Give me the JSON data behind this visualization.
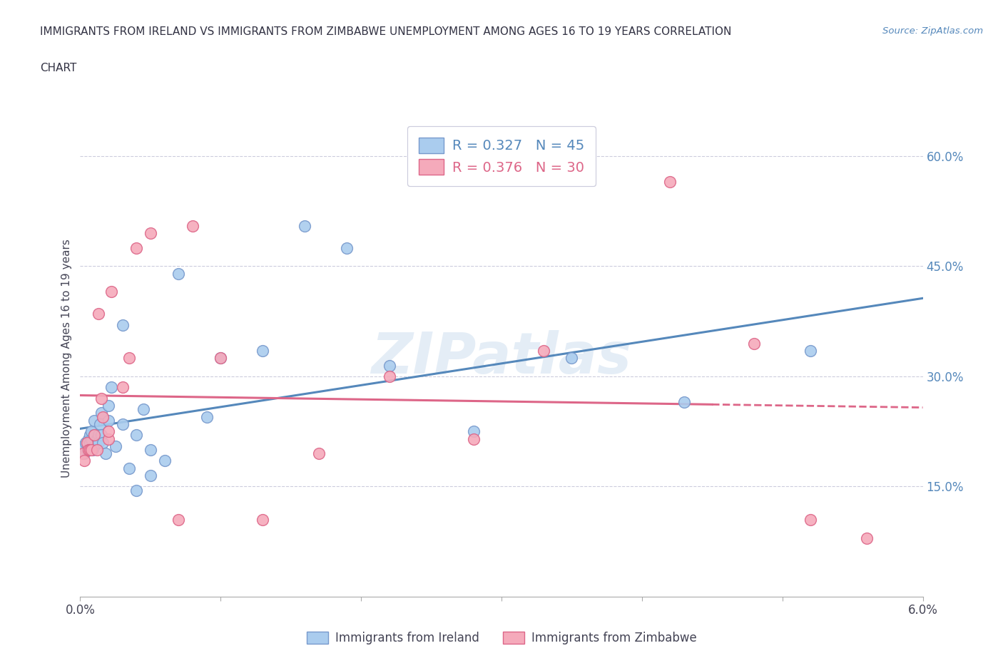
{
  "title_line1": "IMMIGRANTS FROM IRELAND VS IMMIGRANTS FROM ZIMBABWE UNEMPLOYMENT AMONG AGES 16 TO 19 YEARS CORRELATION",
  "title_line2": "CHART",
  "source": "Source: ZipAtlas.com",
  "ylabel": "Unemployment Among Ages 16 to 19 years",
  "ylabel_right_ticks": [
    "15.0%",
    "30.0%",
    "45.0%",
    "60.0%"
  ],
  "ylabel_right_vals": [
    0.15,
    0.3,
    0.45,
    0.6
  ],
  "watermark": "ZIPatlas",
  "ireland_color": "#aaccee",
  "zimbabwe_color": "#f5aabb",
  "ireland_edge_color": "#7799cc",
  "zimbabwe_edge_color": "#dd6688",
  "ireland_line_color": "#5588bb",
  "zimbabwe_line_color": "#dd6688",
  "ireland_r": 0.327,
  "ireland_n": 45,
  "zimbabwe_r": 0.376,
  "zimbabwe_n": 30,
  "xlim": [
    0.0,
    0.06
  ],
  "ylim": [
    0.0,
    0.65
  ],
  "x_ticks": [
    0.0,
    0.01,
    0.02,
    0.03,
    0.04,
    0.05,
    0.06
  ],
  "x_tick_labels_show": [
    "0.0%",
    "",
    "",
    "",
    "",
    "",
    "6.0%"
  ],
  "ireland_x": [
    0.0002,
    0.0003,
    0.0004,
    0.0005,
    0.0006,
    0.0007,
    0.0007,
    0.0008,
    0.0008,
    0.0009,
    0.001,
    0.001,
    0.001,
    0.0012,
    0.0013,
    0.0013,
    0.0014,
    0.0015,
    0.0015,
    0.0016,
    0.0018,
    0.002,
    0.002,
    0.0022,
    0.0025,
    0.003,
    0.003,
    0.0035,
    0.004,
    0.004,
    0.0045,
    0.005,
    0.005,
    0.006,
    0.007,
    0.009,
    0.01,
    0.013,
    0.016,
    0.019,
    0.022,
    0.028,
    0.035,
    0.043,
    0.052
  ],
  "ireland_y": [
    0.205,
    0.195,
    0.21,
    0.2,
    0.215,
    0.21,
    0.22,
    0.215,
    0.225,
    0.2,
    0.205,
    0.22,
    0.24,
    0.215,
    0.22,
    0.21,
    0.235,
    0.25,
    0.22,
    0.21,
    0.195,
    0.24,
    0.26,
    0.285,
    0.205,
    0.235,
    0.37,
    0.175,
    0.145,
    0.22,
    0.255,
    0.165,
    0.2,
    0.185,
    0.44,
    0.245,
    0.325,
    0.335,
    0.505,
    0.475,
    0.315,
    0.225,
    0.325,
    0.265,
    0.335
  ],
  "zimbabwe_x": [
    0.0002,
    0.0003,
    0.0005,
    0.0006,
    0.0007,
    0.0008,
    0.001,
    0.0012,
    0.0013,
    0.0015,
    0.0016,
    0.002,
    0.002,
    0.0022,
    0.003,
    0.0035,
    0.004,
    0.005,
    0.007,
    0.008,
    0.01,
    0.013,
    0.017,
    0.022,
    0.028,
    0.033,
    0.042,
    0.048,
    0.052,
    0.056
  ],
  "zimbabwe_y": [
    0.195,
    0.185,
    0.21,
    0.2,
    0.2,
    0.2,
    0.22,
    0.2,
    0.385,
    0.27,
    0.245,
    0.215,
    0.225,
    0.415,
    0.285,
    0.325,
    0.475,
    0.495,
    0.105,
    0.505,
    0.325,
    0.105,
    0.195,
    0.3,
    0.215,
    0.335,
    0.565,
    0.345,
    0.105,
    0.08
  ]
}
